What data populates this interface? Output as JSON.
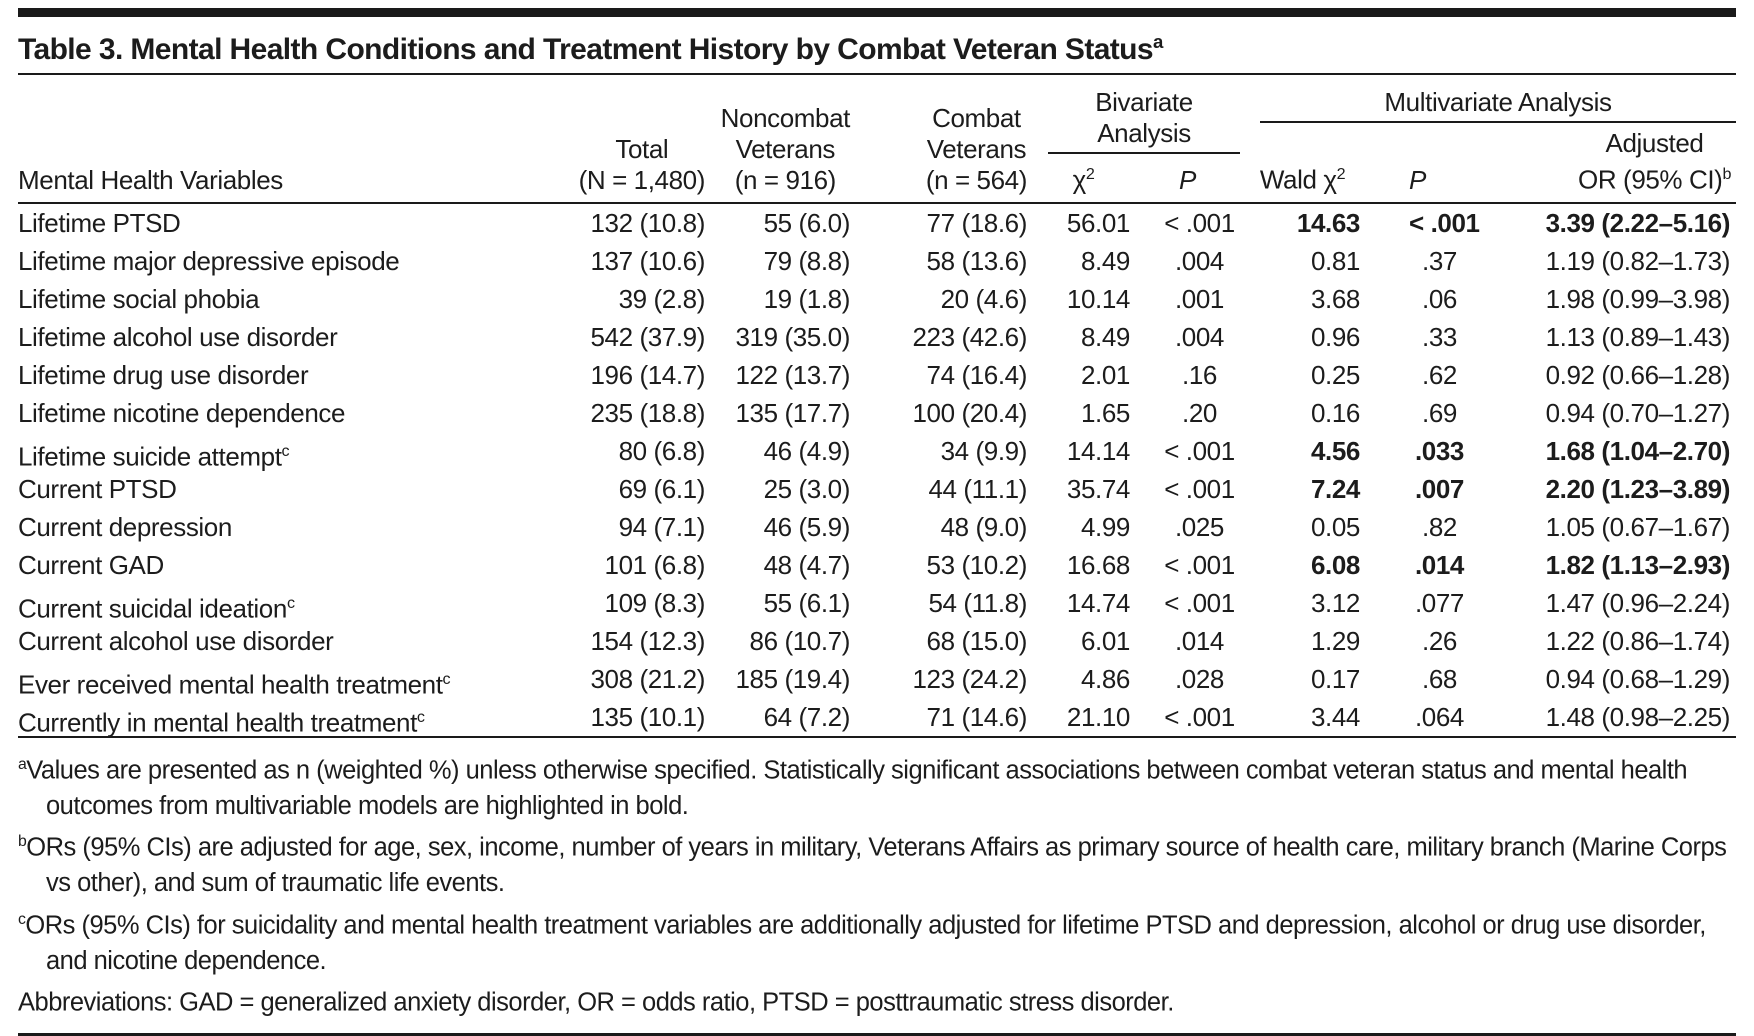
{
  "title": {
    "text": "Table 3. Mental Health Conditions and Treatment History by Combat Veteran Status",
    "sup": "a"
  },
  "header": {
    "variables_label": "Mental Health Variables",
    "total": {
      "line1": "Total",
      "line2": "(N = 1,480)"
    },
    "noncombat": {
      "line1": "Noncombat",
      "line2": "Veterans",
      "line3": "(n = 916)"
    },
    "combat": {
      "line1": "Combat",
      "line2": "Veterans",
      "line3": "(n = 564)"
    },
    "bivariate": {
      "line1": "Bivariate",
      "line2": "Analysis",
      "chi": "χ",
      "chi_sup": "2",
      "p": "P"
    },
    "multivariate": {
      "title": "Multivariate Analysis",
      "wald": "Wald χ",
      "wald_sup": "2",
      "p": "P",
      "adj_line1": "Adjusted",
      "adj_line2": "OR (95% CI)",
      "adj_sup": "b"
    }
  },
  "rows": [
    {
      "label": "Lifetime PTSD",
      "sup": "",
      "total": "132 (10.8)",
      "noncombat": "55 (6.0)",
      "combat": "77 (18.6)",
      "chi2": "56.01",
      "p1": "< .001",
      "wald": "14.63",
      "p2": "< .001",
      "or": "3.39 (2.22–5.16)",
      "sig": true
    },
    {
      "label": "Lifetime major depressive episode",
      "sup": "",
      "total": "137 (10.6)",
      "noncombat": "79 (8.8)",
      "combat": "58 (13.6)",
      "chi2": "8.49",
      "p1": ".004",
      "wald": "0.81",
      "p2": ".37",
      "or": "1.19 (0.82–1.73)",
      "sig": false
    },
    {
      "label": "Lifetime social phobia",
      "sup": "",
      "total": "39 (2.8)",
      "noncombat": "19 (1.8)",
      "combat": "20 (4.6)",
      "chi2": "10.14",
      "p1": ".001",
      "wald": "3.68",
      "p2": ".06",
      "or": "1.98 (0.99–3.98)",
      "sig": false
    },
    {
      "label": "Lifetime alcohol use disorder",
      "sup": "",
      "total": "542 (37.9)",
      "noncombat": "319 (35.0)",
      "combat": "223 (42.6)",
      "chi2": "8.49",
      "p1": ".004",
      "wald": "0.96",
      "p2": ".33",
      "or": "1.13 (0.89–1.43)",
      "sig": false
    },
    {
      "label": "Lifetime drug use disorder",
      "sup": "",
      "total": "196 (14.7)",
      "noncombat": "122 (13.7)",
      "combat": "74 (16.4)",
      "chi2": "2.01",
      "p1": ".16",
      "wald": "0.25",
      "p2": ".62",
      "or": "0.92 (0.66–1.28)",
      "sig": false
    },
    {
      "label": "Lifetime nicotine dependence",
      "sup": "",
      "total": "235 (18.8)",
      "noncombat": "135 (17.7)",
      "combat": "100 (20.4)",
      "chi2": "1.65",
      "p1": ".20",
      "wald": "0.16",
      "p2": ".69",
      "or": "0.94 (0.70–1.27)",
      "sig": false
    },
    {
      "label": "Lifetime suicide attempt",
      "sup": "c",
      "total": "80 (6.8)",
      "noncombat": "46 (4.9)",
      "combat": "34 (9.9)",
      "chi2": "14.14",
      "p1": "< .001",
      "wald": "4.56",
      "p2": ".033",
      "or": "1.68 (1.04–2.70)",
      "sig": true
    },
    {
      "label": "Current PTSD",
      "sup": "",
      "total": "69 (6.1)",
      "noncombat": "25 (3.0)",
      "combat": "44 (11.1)",
      "chi2": "35.74",
      "p1": "< .001",
      "wald": "7.24",
      "p2": ".007",
      "or": "2.20 (1.23–3.89)",
      "sig": true
    },
    {
      "label": "Current depression",
      "sup": "",
      "total": "94 (7.1)",
      "noncombat": "46 (5.9)",
      "combat": "48 (9.0)",
      "chi2": "4.99",
      "p1": ".025",
      "wald": "0.05",
      "p2": ".82",
      "or": "1.05 (0.67–1.67)",
      "sig": false
    },
    {
      "label": "Current GAD",
      "sup": "",
      "total": "101 (6.8)",
      "noncombat": "48 (4.7)",
      "combat": "53 (10.2)",
      "chi2": "16.68",
      "p1": "< .001",
      "wald": "6.08",
      "p2": ".014",
      "or": "1.82 (1.13–2.93)",
      "sig": true
    },
    {
      "label": "Current suicidal ideation",
      "sup": "c",
      "total": "109 (8.3)",
      "noncombat": "55 (6.1)",
      "combat": "54 (11.8)",
      "chi2": "14.74",
      "p1": "< .001",
      "wald": "3.12",
      "p2": ".077",
      "or": "1.47 (0.96–2.24)",
      "sig": false
    },
    {
      "label": "Current alcohol use disorder",
      "sup": "",
      "total": "154 (12.3)",
      "noncombat": "86 (10.7)",
      "combat": "68 (15.0)",
      "chi2": "6.01",
      "p1": ".014",
      "wald": "1.29",
      "p2": ".26",
      "or": "1.22 (0.86–1.74)",
      "sig": false
    },
    {
      "label": "Ever received mental health treatment",
      "sup": "c",
      "total": "308 (21.2)",
      "noncombat": "185 (19.4)",
      "combat": "123 (24.2)",
      "chi2": "4.86",
      "p1": ".028",
      "wald": "0.17",
      "p2": ".68",
      "or": "0.94 (0.68–1.29)",
      "sig": false
    },
    {
      "label": "Currently in mental health treatment",
      "sup": "c",
      "total": "135 (10.1)",
      "noncombat": "64 (7.2)",
      "combat": "71 (14.6)",
      "chi2": "21.10",
      "p1": "< .001",
      "wald": "3.44",
      "p2": ".064",
      "or": "1.48 (0.98–2.25)",
      "sig": false
    }
  ],
  "footnotes": [
    {
      "sup": "a",
      "text": "Values are presented as n (weighted %) unless otherwise specified. Statistically significant associations between combat veteran status and mental health outcomes from multivariable models are highlighted in bold."
    },
    {
      "sup": "b",
      "text": "ORs (95% CIs) are adjusted for age, sex, income, number of years in military, Veterans Affairs as primary source of health care, military branch (Marine Corps vs other), and sum of traumatic life events."
    },
    {
      "sup": "c",
      "text": "ORs (95% CIs) for suicidality and mental health treatment variables are additionally adjusted for lifetime PTSD and depression, alcohol or drug use disorder, and nicotine dependence."
    },
    {
      "sup": "",
      "text": "Abbreviations: GAD = generalized anxiety disorder, OR = odds ratio, PTSD = posttraumatic stress disorder."
    }
  ]
}
